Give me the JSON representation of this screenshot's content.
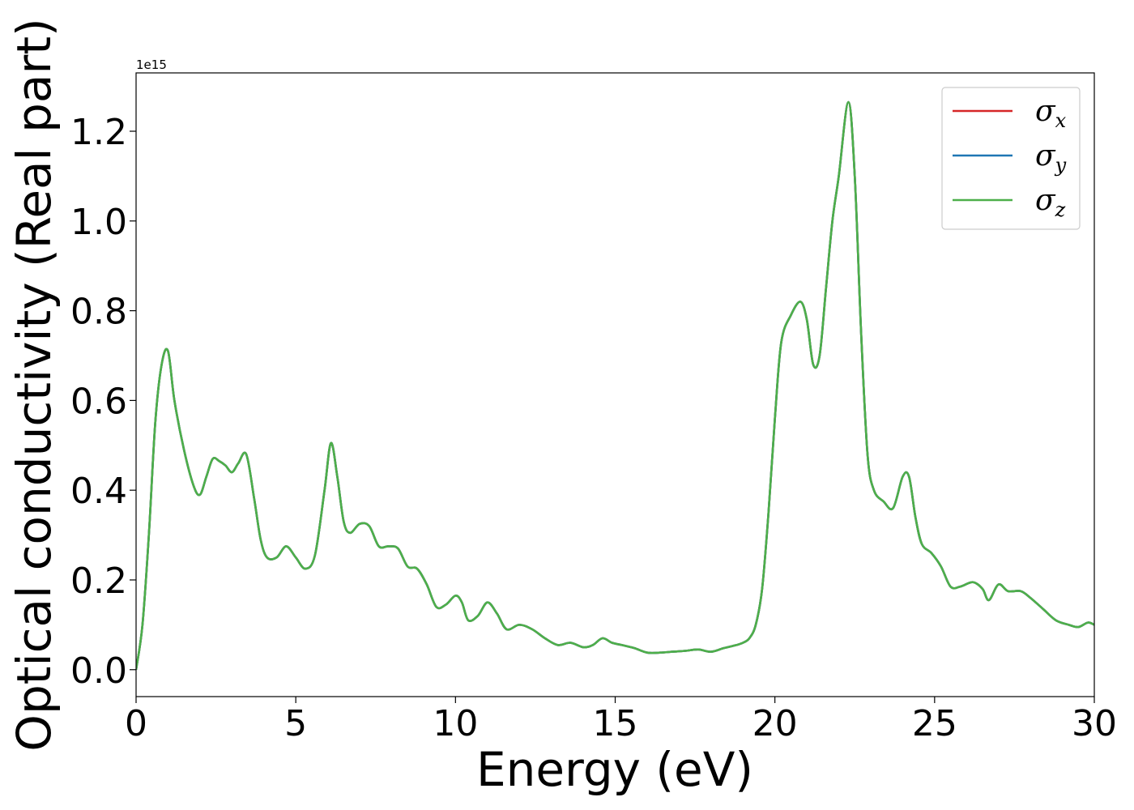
{
  "chart_data": {
    "type": "line",
    "title": "",
    "xlabel": "Energy (eV)",
    "ylabel": "Optical conductivity (Real part)",
    "y_offset_label": "1e15",
    "xlim": [
      0,
      30
    ],
    "ylim": [
      -0.06,
      1.33
    ],
    "x_ticks": [
      0,
      5,
      10,
      15,
      20,
      25,
      30
    ],
    "x_tick_labels": [
      "0",
      "5",
      "10",
      "15",
      "20",
      "25",
      "30"
    ],
    "y_ticks": [
      0.0,
      0.2,
      0.4,
      0.6,
      0.8,
      1.0,
      1.2
    ],
    "y_tick_labels": [
      "0.0",
      "0.2",
      "0.4",
      "0.6",
      "0.8",
      "1.0",
      "1.2"
    ],
    "grid": false,
    "legend_position": "top-right",
    "x": [
      0,
      0.2,
      0.4,
      0.6,
      0.8,
      1.0,
      1.2,
      1.5,
      1.8,
      2.0,
      2.2,
      2.4,
      2.6,
      2.8,
      3.0,
      3.2,
      3.45,
      3.7,
      3.9,
      4.1,
      4.4,
      4.7,
      5.0,
      5.3,
      5.6,
      5.9,
      6.1,
      6.3,
      6.5,
      6.7,
      7.0,
      7.3,
      7.6,
      7.9,
      8.2,
      8.5,
      8.8,
      9.1,
      9.4,
      9.7,
      10.0,
      10.2,
      10.4,
      10.7,
      11.0,
      11.3,
      11.6,
      12.0,
      12.4,
      12.8,
      13.2,
      13.6,
      14.0,
      14.3,
      14.6,
      14.9,
      15.2,
      15.6,
      16.0,
      16.4,
      16.8,
      17.2,
      17.6,
      18.0,
      18.4,
      18.8,
      19.0,
      19.2,
      19.4,
      19.6,
      19.8,
      20.0,
      20.2,
      20.5,
      20.8,
      21.0,
      21.2,
      21.4,
      21.6,
      21.8,
      22.0,
      22.3,
      22.5,
      22.7,
      22.9,
      23.1,
      23.4,
      23.7,
      24.0,
      24.2,
      24.4,
      24.6,
      24.9,
      25.2,
      25.5,
      25.8,
      26.2,
      26.5,
      26.7,
      27.0,
      27.3,
      27.7,
      28.0,
      28.4,
      28.8,
      29.2,
      29.5,
      29.8,
      30.0
    ],
    "series": [
      {
        "name": "σx",
        "color": "#d62728",
        "values": [
          0.0,
          0.1,
          0.3,
          0.55,
          0.68,
          0.71,
          0.6,
          0.49,
          0.41,
          0.39,
          0.43,
          0.47,
          0.465,
          0.455,
          0.44,
          0.46,
          0.48,
          0.38,
          0.29,
          0.25,
          0.25,
          0.275,
          0.25,
          0.225,
          0.255,
          0.4,
          0.505,
          0.43,
          0.33,
          0.305,
          0.325,
          0.32,
          0.275,
          0.275,
          0.27,
          0.23,
          0.225,
          0.19,
          0.14,
          0.145,
          0.165,
          0.15,
          0.11,
          0.12,
          0.15,
          0.125,
          0.09,
          0.1,
          0.09,
          0.07,
          0.055,
          0.06,
          0.05,
          0.055,
          0.07,
          0.06,
          0.055,
          0.048,
          0.038,
          0.038,
          0.04,
          0.042,
          0.045,
          0.04,
          0.048,
          0.055,
          0.06,
          0.07,
          0.1,
          0.18,
          0.35,
          0.56,
          0.73,
          0.79,
          0.82,
          0.78,
          0.68,
          0.7,
          0.85,
          1.0,
          1.1,
          1.265,
          1.1,
          0.75,
          0.48,
          0.4,
          0.375,
          0.36,
          0.43,
          0.43,
          0.34,
          0.28,
          0.26,
          0.23,
          0.185,
          0.185,
          0.195,
          0.18,
          0.155,
          0.19,
          0.175,
          0.175,
          0.16,
          0.135,
          0.11,
          0.1,
          0.095,
          0.105,
          0.1
        ]
      },
      {
        "name": "σy",
        "color": "#1f77b4",
        "values": [
          0.0,
          0.1,
          0.3,
          0.55,
          0.68,
          0.71,
          0.6,
          0.49,
          0.41,
          0.39,
          0.43,
          0.47,
          0.465,
          0.455,
          0.44,
          0.46,
          0.48,
          0.38,
          0.29,
          0.25,
          0.25,
          0.275,
          0.25,
          0.225,
          0.255,
          0.4,
          0.505,
          0.43,
          0.33,
          0.305,
          0.325,
          0.32,
          0.275,
          0.275,
          0.27,
          0.23,
          0.225,
          0.19,
          0.14,
          0.145,
          0.165,
          0.15,
          0.11,
          0.12,
          0.15,
          0.125,
          0.09,
          0.1,
          0.09,
          0.07,
          0.055,
          0.06,
          0.05,
          0.055,
          0.07,
          0.06,
          0.055,
          0.048,
          0.038,
          0.038,
          0.04,
          0.042,
          0.045,
          0.04,
          0.048,
          0.055,
          0.06,
          0.07,
          0.1,
          0.18,
          0.35,
          0.56,
          0.73,
          0.79,
          0.82,
          0.78,
          0.68,
          0.7,
          0.85,
          1.0,
          1.1,
          1.265,
          1.1,
          0.75,
          0.48,
          0.4,
          0.375,
          0.36,
          0.43,
          0.43,
          0.34,
          0.28,
          0.26,
          0.23,
          0.185,
          0.185,
          0.195,
          0.18,
          0.155,
          0.19,
          0.175,
          0.175,
          0.16,
          0.135,
          0.11,
          0.1,
          0.095,
          0.105,
          0.1
        ]
      },
      {
        "name": "σz",
        "color": "#4daf4a",
        "values": [
          0.0,
          0.1,
          0.3,
          0.55,
          0.68,
          0.71,
          0.6,
          0.49,
          0.41,
          0.39,
          0.43,
          0.47,
          0.465,
          0.455,
          0.44,
          0.46,
          0.48,
          0.38,
          0.29,
          0.25,
          0.25,
          0.275,
          0.25,
          0.225,
          0.255,
          0.4,
          0.505,
          0.43,
          0.33,
          0.305,
          0.325,
          0.32,
          0.275,
          0.275,
          0.27,
          0.23,
          0.225,
          0.19,
          0.14,
          0.145,
          0.165,
          0.15,
          0.11,
          0.12,
          0.15,
          0.125,
          0.09,
          0.1,
          0.09,
          0.07,
          0.055,
          0.06,
          0.05,
          0.055,
          0.07,
          0.06,
          0.055,
          0.048,
          0.038,
          0.038,
          0.04,
          0.042,
          0.045,
          0.04,
          0.048,
          0.055,
          0.06,
          0.07,
          0.1,
          0.18,
          0.35,
          0.56,
          0.73,
          0.79,
          0.82,
          0.78,
          0.68,
          0.7,
          0.85,
          1.0,
          1.1,
          1.265,
          1.1,
          0.75,
          0.48,
          0.4,
          0.375,
          0.36,
          0.43,
          0.43,
          0.34,
          0.28,
          0.26,
          0.23,
          0.185,
          0.185,
          0.195,
          0.18,
          0.155,
          0.19,
          0.175,
          0.175,
          0.16,
          0.135,
          0.11,
          0.1,
          0.095,
          0.105,
          0.1
        ]
      }
    ],
    "legend": [
      {
        "symbol": "σ",
        "subscript": "x",
        "color": "#d62728"
      },
      {
        "symbol": "σ",
        "subscript": "y",
        "color": "#1f77b4"
      },
      {
        "symbol": "σ",
        "subscript": "z",
        "color": "#4daf4a"
      }
    ]
  }
}
